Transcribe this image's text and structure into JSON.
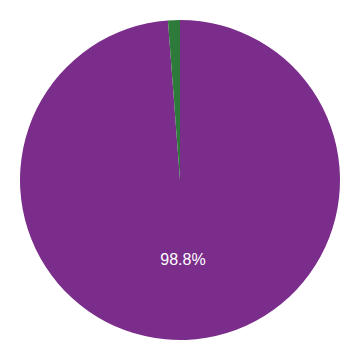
{
  "chart_data": {
    "type": "pie",
    "values": [
      98.8,
      1.2
    ],
    "colors": [
      "#7b2d8b",
      "#2d7a3a"
    ],
    "value_labels": [
      "98.8%",
      null
    ]
  }
}
